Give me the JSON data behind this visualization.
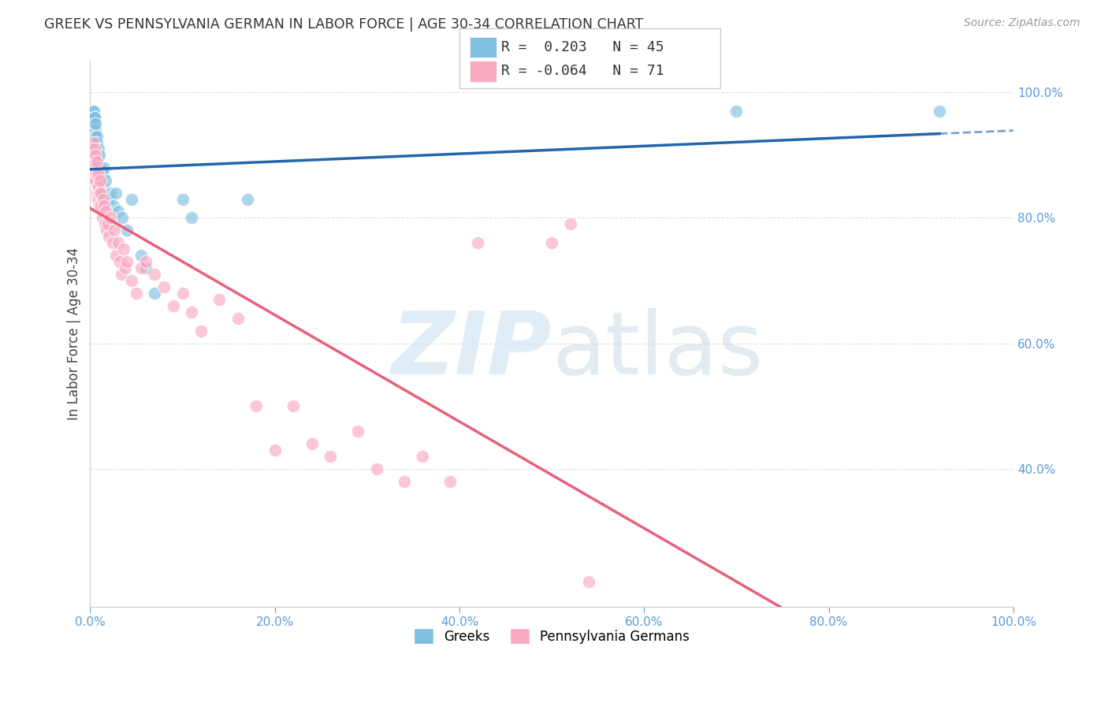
{
  "title": "GREEK VS PENNSYLVANIA GERMAN IN LABOR FORCE | AGE 30-34 CORRELATION CHART",
  "source": "Source: ZipAtlas.com",
  "ylabel": "In Labor Force | Age 30-34",
  "xlim": [
    0,
    1.0
  ],
  "ylim": [
    0.18,
    1.05
  ],
  "legend_r_greek": " 0.203",
  "legend_n_greek": "45",
  "legend_r_pg": "-0.064",
  "legend_n_pg": "71",
  "greek_color": "#7fbfdf",
  "pg_color": "#f9a8c0",
  "greek_line_color": "#2166ac",
  "pg_line_color": "#e8607a",
  "background_color": "#ffffff",
  "grid_color": "#cccccc",
  "greek_points_x": [
    0.002,
    0.003,
    0.003,
    0.004,
    0.004,
    0.004,
    0.004,
    0.005,
    0.005,
    0.005,
    0.005,
    0.006,
    0.006,
    0.006,
    0.007,
    0.007,
    0.007,
    0.008,
    0.008,
    0.009,
    0.01,
    0.01,
    0.011,
    0.012,
    0.013,
    0.014,
    0.015,
    0.017,
    0.018,
    0.02,
    0.022,
    0.025,
    0.028,
    0.03,
    0.035,
    0.04,
    0.045,
    0.055,
    0.06,
    0.07,
    0.1,
    0.11,
    0.17,
    0.7,
    0.92
  ],
  "greek_points_y": [
    0.96,
    0.94,
    0.97,
    0.96,
    0.95,
    0.94,
    0.97,
    0.96,
    0.95,
    0.93,
    0.96,
    0.94,
    0.93,
    0.95,
    0.93,
    0.9,
    0.92,
    0.9,
    0.88,
    0.91,
    0.9,
    0.87,
    0.88,
    0.87,
    0.85,
    0.87,
    0.88,
    0.86,
    0.83,
    0.83,
    0.84,
    0.82,
    0.84,
    0.81,
    0.8,
    0.78,
    0.83,
    0.74,
    0.72,
    0.68,
    0.83,
    0.8,
    0.83,
    0.97,
    0.97
  ],
  "pg_points_x": [
    0.002,
    0.002,
    0.003,
    0.003,
    0.003,
    0.004,
    0.004,
    0.004,
    0.005,
    0.005,
    0.005,
    0.005,
    0.006,
    0.006,
    0.006,
    0.007,
    0.007,
    0.007,
    0.008,
    0.008,
    0.009,
    0.009,
    0.01,
    0.01,
    0.011,
    0.012,
    0.012,
    0.013,
    0.014,
    0.015,
    0.016,
    0.017,
    0.018,
    0.019,
    0.02,
    0.022,
    0.024,
    0.026,
    0.028,
    0.03,
    0.032,
    0.034,
    0.036,
    0.038,
    0.04,
    0.045,
    0.05,
    0.055,
    0.06,
    0.07,
    0.08,
    0.09,
    0.1,
    0.11,
    0.12,
    0.14,
    0.16,
    0.18,
    0.2,
    0.22,
    0.24,
    0.26,
    0.29,
    0.31,
    0.34,
    0.36,
    0.39,
    0.42,
    0.5,
    0.52,
    0.54
  ],
  "pg_points_y": [
    0.89,
    0.91,
    0.9,
    0.88,
    0.92,
    0.89,
    0.86,
    0.9,
    0.87,
    0.91,
    0.88,
    0.89,
    0.87,
    0.9,
    0.86,
    0.89,
    0.84,
    0.87,
    0.85,
    0.83,
    0.87,
    0.85,
    0.84,
    0.82,
    0.86,
    0.84,
    0.82,
    0.8,
    0.83,
    0.82,
    0.79,
    0.81,
    0.78,
    0.79,
    0.77,
    0.8,
    0.76,
    0.78,
    0.74,
    0.76,
    0.73,
    0.71,
    0.75,
    0.72,
    0.73,
    0.7,
    0.68,
    0.72,
    0.73,
    0.71,
    0.69,
    0.66,
    0.68,
    0.65,
    0.62,
    0.67,
    0.64,
    0.5,
    0.43,
    0.5,
    0.44,
    0.42,
    0.46,
    0.4,
    0.38,
    0.42,
    0.38,
    0.76,
    0.76,
    0.79,
    0.22
  ]
}
